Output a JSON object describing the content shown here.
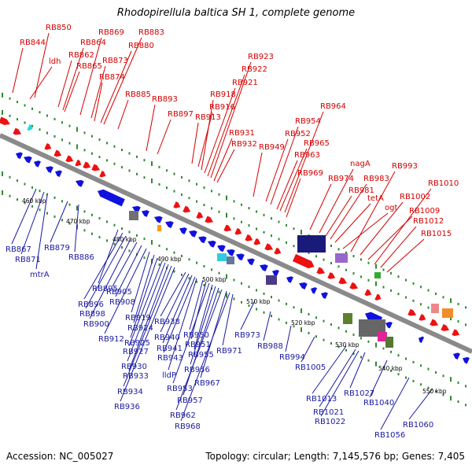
{
  "title": "Rhodopirellula baltica SH 1, complete genome",
  "footer": {
    "accession": "Accession: NC_005027",
    "summary": "Topology: circular; Length: 7,145,576 bp; Genes: 7,405"
  },
  "colors": {
    "forward_gene": "#ee1111",
    "reverse_gene": "#1111dd",
    "backbone": "#8a8a8a",
    "tick": "#2e8b2e",
    "label_red": "#d40000",
    "label_blue": "#1a1aa0"
  },
  "scale_labels": [
    "460 kbp",
    "470 kbp",
    "480 kbp",
    "490 kbp",
    "500 kbp",
    "510 kbp",
    "520 kbp",
    "530 kbp",
    "540 kbp",
    "550 kbp"
  ],
  "forward_labels": [
    "RB844",
    "RB850",
    "ldh",
    "RB862",
    "RB864",
    "RB865",
    "RB869",
    "RB873",
    "RB874",
    "RB880",
    "RB883",
    "RB885",
    "RB893",
    "RB897",
    "RB913",
    "RB916",
    "RB918",
    "RB921",
    "RB922",
    "RB923",
    "RB931",
    "RB932",
    "RB949",
    "RB952",
    "RB954",
    "RB963",
    "RB964",
    "RB965",
    "RB969",
    "RB974",
    "nagA",
    "RB981",
    "RB983",
    "tetA",
    "ogt",
    "RB993",
    "RB1002",
    "RB1009",
    "RB1010",
    "RB1012",
    "RB1015"
  ],
  "reverse_labels": [
    "RB867",
    "RB871",
    "mtrA",
    "RB879",
    "RB886",
    "RB895",
    "RB896",
    "RB898",
    "RB900",
    "RB905",
    "RB908",
    "RB912",
    "RB919",
    "RB924",
    "RB925",
    "RB927",
    "RB930",
    "RB933",
    "RB934",
    "RB936",
    "RB938",
    "RB940",
    "RB941",
    "RB943",
    "lldP",
    "RB950",
    "RB951",
    "RB953",
    "RB955",
    "RB956",
    "RB957",
    "RB962",
    "RB967",
    "RB968",
    "RB971",
    "RB973",
    "RB988",
    "RB994",
    "RB1005",
    "RB1013",
    "RB1021",
    "RB1022",
    "RB1027",
    "RB1040",
    "RB1056",
    "RB1060"
  ]
}
